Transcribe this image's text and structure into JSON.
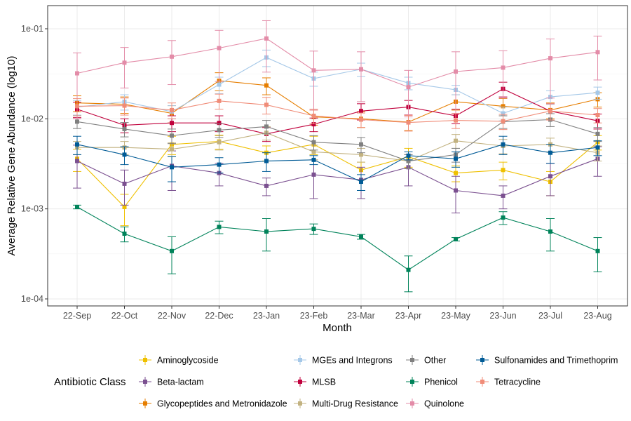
{
  "chart_data": {
    "type": "line",
    "xlabel": "Month",
    "ylabel": "Average Relative Gene Abundance (log10)",
    "y_scale": "log10",
    "ylim": [
      0.0001,
      0.1
    ],
    "y_ticks": [
      {
        "value": 0.1,
        "label": "1e-01"
      },
      {
        "value": 0.01,
        "label": "1e-02"
      },
      {
        "value": 0.001,
        "label": "1e-03"
      },
      {
        "value": 0.0001,
        "label": "1e-04"
      }
    ],
    "categories": [
      "22-Sep",
      "22-Oct",
      "22-Nov",
      "22-Dec",
      "23-Jan",
      "23-Feb",
      "23-Mar",
      "23-Apr",
      "23-May",
      "23-Jun",
      "23-Jul",
      "23-Aug"
    ],
    "grid": true,
    "legend_title": "Antibiotic Class",
    "legend_position": "bottom",
    "series": [
      {
        "name": "Aminoglycoside",
        "color": "#EFC000",
        "values": [
          0.0036,
          0.00105,
          0.0052,
          0.0056,
          0.0042,
          0.0052,
          0.0027,
          0.0038,
          0.0025,
          0.0027,
          0.002,
          0.0055
        ],
        "err": [
          0.001,
          0.0004,
          0.0012,
          0.001,
          0.0008,
          0.0012,
          0.0006,
          0.0009,
          0.0005,
          0.0006,
          0.0006,
          0.001
        ]
      },
      {
        "name": "Beta-lactam",
        "color": "#7B5090",
        "values": [
          0.0034,
          0.0019,
          0.003,
          0.0025,
          0.0018,
          0.0024,
          0.0021,
          0.0029,
          0.0016,
          0.0014,
          0.0023,
          0.0036
        ],
        "err": [
          0.0017,
          0.0008,
          0.0014,
          0.0007,
          0.0004,
          0.0011,
          0.0008,
          0.0011,
          0.0007,
          0.0004,
          0.0009,
          0.0013
        ]
      },
      {
        "name": "Glycopeptides and Metronidazole",
        "color": "#E67E00",
        "values": [
          0.015,
          0.0145,
          0.0115,
          0.0265,
          0.0235,
          0.0105,
          0.01,
          0.0092,
          0.0155,
          0.0138,
          0.0125,
          0.0165
        ],
        "err": [
          0.003,
          0.003,
          0.0025,
          0.006,
          0.005,
          0.002,
          0.002,
          0.0018,
          0.003,
          0.003,
          0.0025,
          0.003
        ]
      },
      {
        "name": "MGEs and Integrons",
        "color": "#A5C8E8",
        "values": [
          0.0135,
          0.0155,
          0.012,
          0.024,
          0.048,
          0.028,
          0.0355,
          0.025,
          0.021,
          0.0115,
          0.0175,
          0.0195
        ],
        "err": [
          0.0025,
          0.003,
          0.002,
          0.005,
          0.01,
          0.005,
          0.006,
          0.004,
          0.0025,
          0.002,
          0.003,
          0.003
        ]
      },
      {
        "name": "MLSB",
        "color": "#C0003C",
        "values": [
          0.0128,
          0.0085,
          0.009,
          0.009,
          0.0068,
          0.0087,
          0.0122,
          0.0135,
          0.0108,
          0.0215,
          0.0122,
          0.0095
        ],
        "err": [
          0.0025,
          0.0015,
          0.0018,
          0.0018,
          0.0012,
          0.0015,
          0.0025,
          0.0025,
          0.002,
          0.004,
          0.0025,
          0.0018
        ]
      },
      {
        "name": "Multi-Drug Resistance",
        "color": "#C2B280",
        "values": [
          0.0048,
          0.0048,
          0.0046,
          0.0055,
          0.007,
          0.0043,
          0.004,
          0.0034,
          0.0057,
          0.005,
          0.0052,
          0.0042
        ],
        "err": [
          0.0008,
          0.0008,
          0.0008,
          0.001,
          0.0012,
          0.0008,
          0.0007,
          0.0006,
          0.001,
          0.0009,
          0.0009,
          0.0008
        ]
      },
      {
        "name": "Other",
        "color": "#808080",
        "values": [
          0.0093,
          0.0077,
          0.0065,
          0.0075,
          0.0082,
          0.0055,
          0.0052,
          0.0034,
          0.004,
          0.0093,
          0.0098,
          0.0068
        ],
        "err": [
          0.0015,
          0.0014,
          0.0012,
          0.0013,
          0.0014,
          0.001,
          0.001,
          0.0006,
          0.0007,
          0.0015,
          0.0016,
          0.0012
        ]
      },
      {
        "name": "Phenicol",
        "color": "#00835A",
        "values": [
          0.00105,
          0.00053,
          0.00034,
          0.00063,
          0.00056,
          0.0006,
          0.00049,
          0.00021,
          0.00046,
          0.0008,
          0.00056,
          0.00034
        ],
        "err": [
          5e-05,
          0.0001,
          0.00015,
          0.0001,
          0.00022,
          8e-05,
          3e-05,
          9e-05,
          2e-05,
          0.00013,
          0.00022,
          0.00014
        ]
      },
      {
        "name": "Quinolone",
        "color": "#E38CA8",
        "values": [
          0.032,
          0.042,
          0.049,
          0.061,
          0.078,
          0.0345,
          0.0355,
          0.0225,
          0.0335,
          0.037,
          0.047,
          0.055
        ],
        "err": [
          0.022,
          0.02,
          0.025,
          0.035,
          0.045,
          0.022,
          0.02,
          0.012,
          0.022,
          0.02,
          0.03,
          0.028
        ]
      },
      {
        "name": "Sulfonamides and Trimethoprim",
        "color": "#005B96",
        "values": [
          0.0052,
          0.004,
          0.0029,
          0.0031,
          0.0034,
          0.0035,
          0.002,
          0.0039,
          0.0036,
          0.0052,
          0.0042,
          0.0048
        ],
        "err": [
          0.0012,
          0.0009,
          0.0009,
          0.0006,
          0.0008,
          0.0004,
          0.0004,
          0.0004,
          0.0007,
          0.0012,
          0.001,
          0.0009
        ]
      },
      {
        "name": "Tetracycline",
        "color": "#F08C78",
        "values": [
          0.0138,
          0.014,
          0.0125,
          0.0158,
          0.0143,
          0.0108,
          0.0098,
          0.0091,
          0.0096,
          0.0094,
          0.0122,
          0.011
        ],
        "err": [
          0.003,
          0.003,
          0.0025,
          0.003,
          0.003,
          0.002,
          0.0018,
          0.0018,
          0.0018,
          0.0018,
          0.0025,
          0.002
        ]
      }
    ]
  }
}
